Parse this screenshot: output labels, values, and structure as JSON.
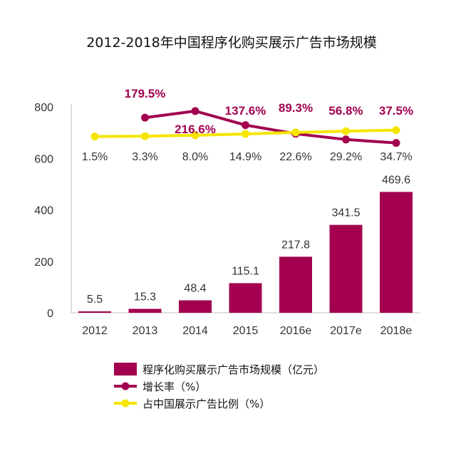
{
  "chart_data": {
    "type": "bar",
    "title": "2012-2018年中国程序化购买展示广告市场规模",
    "categories": [
      "2012",
      "2013",
      "2014",
      "2015",
      "2016e",
      "2017e",
      "2018e"
    ],
    "ylim": [
      0,
      800
    ],
    "yticks": [
      "0",
      "200",
      "400",
      "600",
      "800"
    ],
    "grid": false,
    "legend_position": "bottom",
    "series": [
      {
        "name": "程序化购买展示广告市场规模（亿元）",
        "type": "bar",
        "values": [
          5.5,
          15.3,
          48.4,
          115.1,
          217.8,
          341.5,
          469.6
        ],
        "labels": [
          "5.5",
          "15.3",
          "48.4",
          "115.1",
          "217.8",
          "341.5",
          "469.6"
        ],
        "color": "#a3004f"
      },
      {
        "name": "增长率（%）",
        "type": "line",
        "values": [
          null,
          179.5,
          216.6,
          137.6,
          89.3,
          56.8,
          37.5
        ],
        "labels": [
          "",
          "179.5%",
          "216.6%",
          "137.6%",
          "89.3%",
          "56.8%",
          "37.5%"
        ],
        "color": "#a3004f"
      },
      {
        "name": "占中国展示广告比例（%）",
        "type": "line",
        "values": [
          1.5,
          3.3,
          8.0,
          14.9,
          22.6,
          29.2,
          34.7
        ],
        "labels": [
          "1.5%",
          "3.3%",
          "8.0%",
          "14.9%",
          "22.6%",
          "29.2%",
          "34.7%"
        ],
        "color": "#f5e500"
      }
    ]
  }
}
